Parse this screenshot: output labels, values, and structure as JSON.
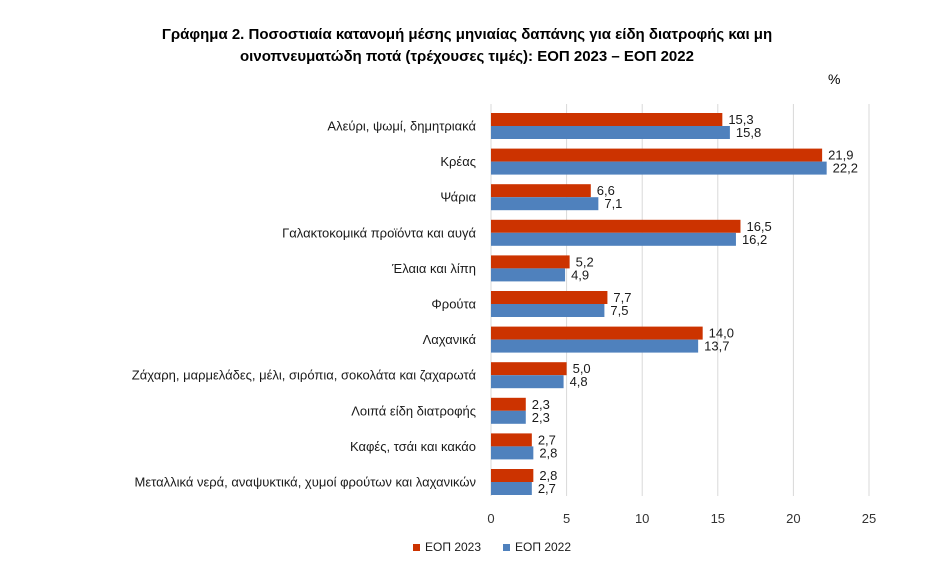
{
  "chart_data": {
    "type": "bar",
    "orientation": "horizontal",
    "title_line1": "Γράφημα 2.  Ποσοστιαία κατανομή μέσης μηνιαίας δαπάνης για είδη διατροφής και μη",
    "title_line2": "οινοπνευματώδη ποτά (τρέχουσες τιμές): ΕΟΠ 2023 – ΕΟΠ 2022",
    "unit": "%",
    "categories": [
      "Αλεύρι, ψωμί, δημητριακά",
      "Κρέας",
      "Ψάρια",
      "Γαλακτοκομικά προϊόντα και αυγά",
      "Έλαια και λίπη",
      "Φρούτα",
      "Λαχανικά",
      "Ζάχαρη, μαρμελάδες, μέλι, σιρόπια, σοκολάτα και ζαχαρωτά",
      "Λοιπά είδη διατροφής",
      "Καφές, τσάι και κακάο",
      "Μεταλλικά νερά, αναψυκτικά, χυμοί φρούτων και λαχανικών"
    ],
    "series": [
      {
        "name": "ΕΟΠ 2023",
        "color": "#cc3300",
        "values": [
          15.3,
          21.9,
          6.6,
          16.5,
          5.2,
          7.7,
          14.0,
          5.0,
          2.3,
          2.7,
          2.8
        ],
        "labels": [
          "15,3",
          "21,9",
          "6,6",
          "16,5",
          "5,2",
          "7,7",
          "14,0",
          "5,0",
          "2,3",
          "2,7",
          "2,8"
        ]
      },
      {
        "name": "ΕΟΠ 2022",
        "color": "#4f81bd",
        "values": [
          15.8,
          22.2,
          7.1,
          16.2,
          4.9,
          7.5,
          13.7,
          4.8,
          2.3,
          2.8,
          2.7
        ],
        "labels": [
          "15,8",
          "22,2",
          "7,1",
          "16,2",
          "4,9",
          "7,5",
          "13,7",
          "4,8",
          "2,3",
          "2,8",
          "2,7"
        ]
      }
    ],
    "xlim": [
      0,
      25
    ],
    "xticks": [
      0,
      5,
      10,
      15,
      20,
      25
    ],
    "xtick_labels": [
      "0",
      "5",
      "10",
      "15",
      "20",
      "25"
    ],
    "grid": true,
    "legend_position": "bottom"
  }
}
